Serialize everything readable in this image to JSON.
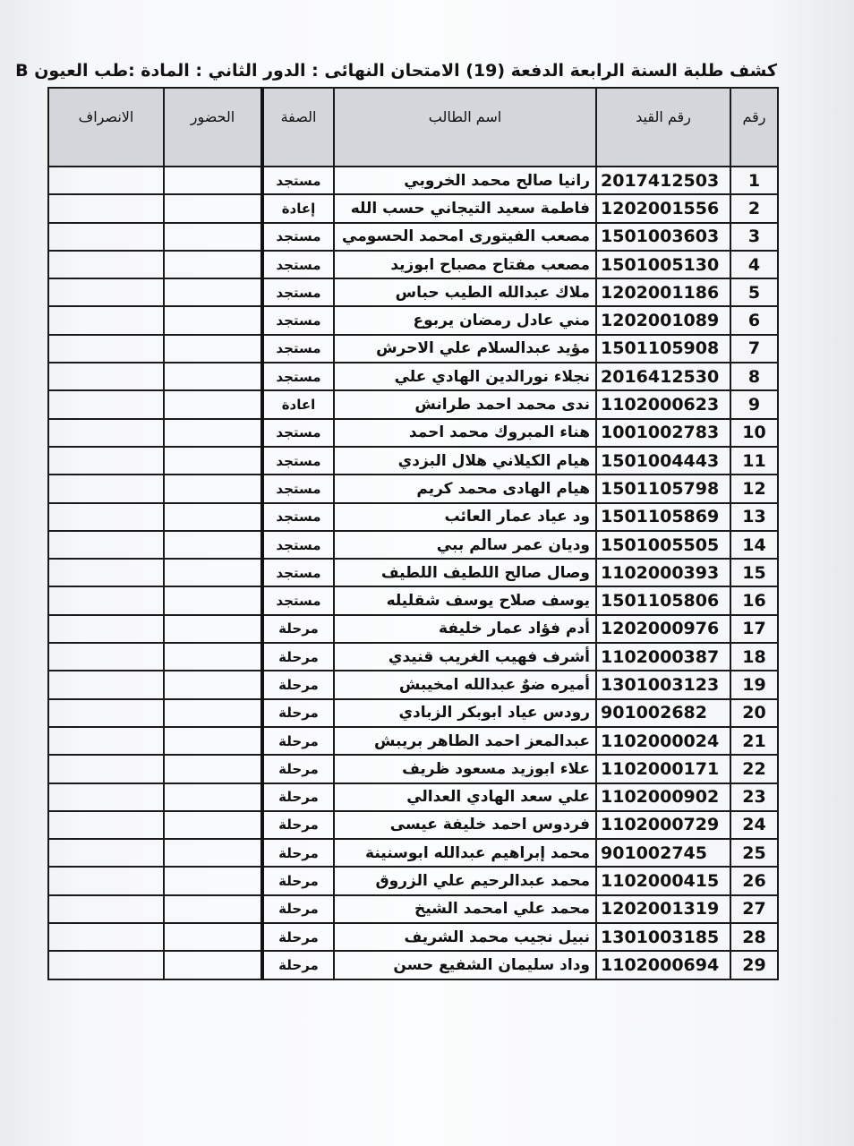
{
  "title": "كشف  طلبة السنة الرابعة  الدفعة (19) الامتحان النهائى : الدور الثاني  : المادة :طب العيون B",
  "headers": {
    "num": "رقم",
    "id": "رقم القيد",
    "name": "اسم الطالب",
    "status": "الصفة",
    "attendance": "الحضور",
    "departure": "الانصراف"
  },
  "rows": [
    {
      "num": "1",
      "id": "2017412503",
      "name": "رانيا صالح محمد  الخروبي",
      "status": "مستجد"
    },
    {
      "num": "2",
      "id": "1202001556",
      "name": "فاطمة سعيد التيجاني حسب الله",
      "status": "إعادة"
    },
    {
      "num": "3",
      "id": "1501003603",
      "name": "مصعب الفيتورى امحمد الحسومي",
      "status": "مستجد"
    },
    {
      "num": "4",
      "id": "1501005130",
      "name": "مصعب مفتاح مصباح ابوزيد",
      "status": "مستجد"
    },
    {
      "num": "5",
      "id": "1202001186",
      "name": "ملاك عبدالله الطيب حباس",
      "status": "مستجد"
    },
    {
      "num": "6",
      "id": "1202001089",
      "name": "مني عادل رمضان يربوع",
      "status": "مستجد"
    },
    {
      "num": "7",
      "id": "1501105908",
      "name": "مؤيد عبدالسلام علي  الاحرش",
      "status": "مستجد"
    },
    {
      "num": "8",
      "id": "2016412530",
      "name": "نجلاء نورالدين الهادي  علي",
      "status": "مستجد"
    },
    {
      "num": "9",
      "id": "1102000623",
      "name": "ندى محمد احمد طرانش",
      "status": "اعادة"
    },
    {
      "num": "10",
      "id": "1001002783",
      "name": "هناء المبروك محمد احمد",
      "status": "مستجد"
    },
    {
      "num": "11",
      "id": "1501004443",
      "name": "هيام الكيلاني هلال  البزدي",
      "status": "مستجد"
    },
    {
      "num": "12",
      "id": "1501105798",
      "name": "هيام الهادى محمد  كريم",
      "status": "مستجد"
    },
    {
      "num": "13",
      "id": "1501105869",
      "name": "ود عياد عمار  العائب",
      "status": "مستجد"
    },
    {
      "num": "14",
      "id": "1501005505",
      "name": "وديان عمر سالم ببي",
      "status": "مستجد"
    },
    {
      "num": "15",
      "id": "1102000393",
      "name": "وصال صالح اللطيف اللطيف",
      "status": "مستجد"
    },
    {
      "num": "16",
      "id": "1501105806",
      "name": "يوسف صلاح يوسف  شقليله",
      "status": "مستجد"
    },
    {
      "num": "17",
      "id": "1202000976",
      "name": "أدم فؤاد عمار خليفة",
      "status": "مرحلة"
    },
    {
      "num": "18",
      "id": "1102000387",
      "name": "أشرف فهيب الغريب قنيدي",
      "status": "مرحلة"
    },
    {
      "num": "19",
      "id": "1301003123",
      "name": "أميره ضوٌ عبدالله امخيبش",
      "status": "مرحلة"
    },
    {
      "num": "20",
      "id": "901002682",
      "name": "رودس عياد ابوبكر الزبادي",
      "status": "مرحلة"
    },
    {
      "num": "21",
      "id": "1102000024",
      "name": "عبدالمعز احمد الطاهر بريبش",
      "status": "مرحلة"
    },
    {
      "num": "22",
      "id": "1102000171",
      "name": "علاء ابوزيد مسعود ظريف",
      "status": "مرحلة"
    },
    {
      "num": "23",
      "id": "1102000902",
      "name": "علي سعد الهادي العدالي",
      "status": "مرحلة"
    },
    {
      "num": "24",
      "id": "1102000729",
      "name": "فردوس احمد خليفة عيسى",
      "status": "مرحلة"
    },
    {
      "num": "25",
      "id": "901002745",
      "name": "محمد إبراهيم عبدالله ابوسنينة",
      "status": "مرحلة"
    },
    {
      "num": "26",
      "id": "1102000415",
      "name": "محمد عبدالرحيم علي الزروق",
      "status": "مرحلة"
    },
    {
      "num": "27",
      "id": "1202001319",
      "name": "محمد علي امحمد الشيخ",
      "status": "مرحلة"
    },
    {
      "num": "28",
      "id": "1301003185",
      "name": "نبيل نجيب محمد الشريف",
      "status": "مرحلة"
    },
    {
      "num": "29",
      "id": "1102000694",
      "name": "وداد سليمان الشفيع حسن",
      "status": "مرحلة"
    }
  ]
}
